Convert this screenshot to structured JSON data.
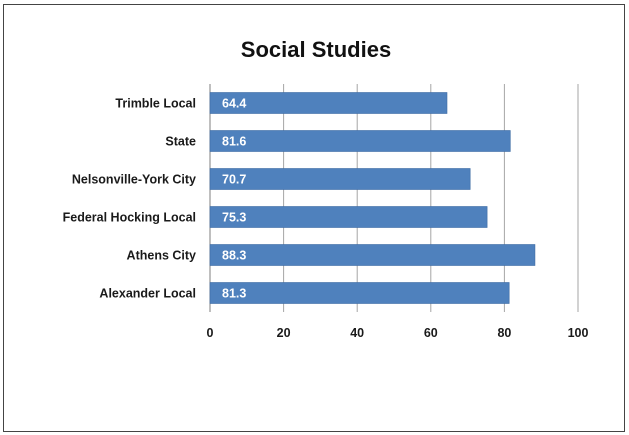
{
  "chart_data": {
    "type": "bar",
    "orientation": "horizontal",
    "title": "Social Studies",
    "categories": [
      "Trimble Local",
      "State",
      "Nelsonville-York City",
      "Federal Hocking Local",
      "Athens City",
      "Alexander Local"
    ],
    "values": [
      64.4,
      81.6,
      70.7,
      75.3,
      88.3,
      81.3
    ],
    "data_labels": [
      "64.4",
      "81.6",
      "70.7",
      "75.3",
      "88.3",
      "81.3"
    ],
    "xlabel": "",
    "ylabel": "",
    "xlim": [
      0,
      100
    ],
    "x_ticks": [
      "0",
      "20",
      "40",
      "60",
      "80",
      "100"
    ],
    "grid": true,
    "legend": "none",
    "colors": {
      "bar": "#4f81bd",
      "bar_edge": "#3c6aa3",
      "grid": "#a6a6a6",
      "axis": "#7f7f7f"
    }
  }
}
